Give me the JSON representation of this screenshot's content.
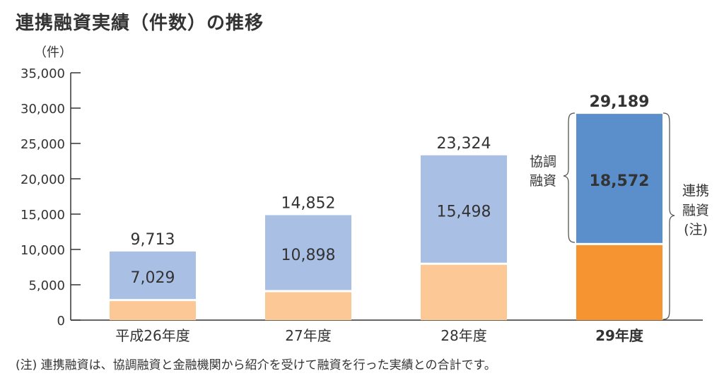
{
  "chart_data": {
    "type": "bar",
    "stacked": true,
    "title": "連携融資実績（件数）の推移",
    "ylabel": "（件）",
    "xlabel": "",
    "ylim": [
      0,
      35000
    ],
    "yticks": [
      "0",
      "5,000",
      "10,000",
      "15,000",
      "20,000",
      "25,000",
      "30,000",
      "35,000"
    ],
    "categories": [
      "平成26年度",
      "27年度",
      "28年度",
      "29年度"
    ],
    "highlight_category": "29年度",
    "series": [
      {
        "name": "",
        "values": [
          2684,
          3954,
          7826,
          10617
        ],
        "colors": [
          "#fcc896",
          "#fcc896",
          "#fcc896",
          "#f79432"
        ]
      },
      {
        "name": "協調融資",
        "values": [
          7029,
          10898,
          15498,
          18572
        ],
        "colors": [
          "#a9bfe4",
          "#a9bfe4",
          "#a9bfe4",
          "#5b8fcc"
        ]
      }
    ],
    "segment_labels": [
      "7,029",
      "10,898",
      "15,498",
      "18,572"
    ],
    "totals": [
      9713,
      14852,
      23324,
      29189
    ],
    "total_labels": [
      "9,713",
      "14,852",
      "23,324",
      "29,189"
    ],
    "annotations": {
      "left_brace": [
        "協調",
        "融資"
      ],
      "right_brace": [
        "連携",
        "融資",
        "(注)"
      ]
    },
    "grid": false
  },
  "note": "(注) 連携融資は、協調融資と金融機関から紹介を受けて融資を行った実績との合計です。"
}
